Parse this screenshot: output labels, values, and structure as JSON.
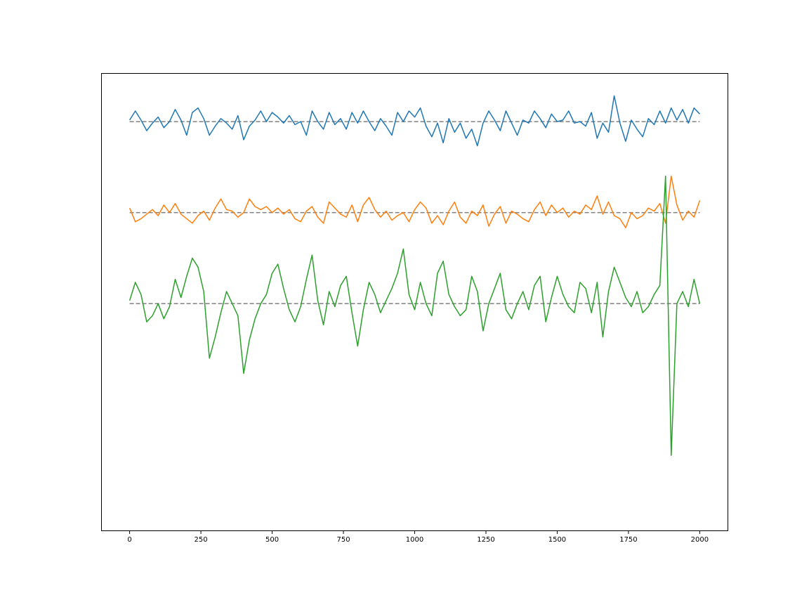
{
  "chart_data": {
    "type": "line",
    "title": "",
    "xlabel": "",
    "ylabel": "",
    "xlim": [
      -100,
      2100
    ],
    "ylim": [
      -10.5,
      4.6
    ],
    "y_ticks_shown": false,
    "grid": false,
    "legend": "none",
    "x_ticks": [
      0,
      250,
      500,
      750,
      1000,
      1250,
      1500,
      1750,
      2000
    ],
    "x_tick_labels": [
      "0",
      "250",
      "500",
      "750",
      "1000",
      "1250",
      "1500",
      "1750",
      "2000"
    ],
    "series": [
      {
        "color": "#1f77b4",
        "baseline": 3.0,
        "x": [
          0,
          20,
          40,
          60,
          80,
          100,
          120,
          140,
          160,
          180,
          200,
          220,
          240,
          260,
          280,
          300,
          320,
          340,
          360,
          380,
          400,
          420,
          440,
          460,
          480,
          500,
          520,
          540,
          560,
          580,
          600,
          620,
          640,
          660,
          680,
          700,
          720,
          740,
          760,
          780,
          800,
          820,
          840,
          860,
          880,
          900,
          920,
          940,
          960,
          980,
          1000,
          1020,
          1040,
          1060,
          1080,
          1100,
          1120,
          1140,
          1160,
          1180,
          1200,
          1220,
          1240,
          1260,
          1280,
          1300,
          1320,
          1340,
          1360,
          1380,
          1400,
          1420,
          1440,
          1460,
          1480,
          1500,
          1520,
          1540,
          1560,
          1580,
          1600,
          1620,
          1640,
          1660,
          1680,
          1700,
          1720,
          1740,
          1760,
          1780,
          1800,
          1820,
          1840,
          1860,
          1880,
          1900,
          1920,
          1940,
          1960,
          1980,
          2000
        ],
        "y": [
          3.05,
          3.35,
          3.05,
          2.7,
          2.95,
          3.15,
          2.8,
          3.0,
          3.4,
          3.05,
          2.55,
          3.3,
          3.45,
          3.1,
          2.55,
          2.85,
          3.1,
          2.95,
          2.75,
          3.2,
          2.4,
          2.85,
          3.05,
          3.35,
          3.0,
          3.3,
          3.15,
          2.95,
          3.2,
          2.9,
          3.0,
          2.55,
          3.35,
          3.0,
          2.75,
          3.3,
          2.9,
          3.1,
          2.75,
          3.3,
          2.95,
          3.35,
          3.0,
          2.7,
          3.1,
          2.85,
          2.55,
          3.3,
          3.0,
          3.35,
          3.15,
          3.45,
          2.85,
          2.5,
          2.95,
          2.3,
          3.1,
          2.65,
          2.95,
          2.45,
          2.75,
          2.2,
          2.95,
          3.35,
          3.05,
          2.7,
          3.35,
          2.95,
          2.55,
          3.05,
          2.95,
          3.35,
          3.1,
          2.8,
          3.25,
          3.0,
          3.05,
          3.35,
          2.95,
          3.0,
          2.85,
          3.3,
          2.45,
          2.95,
          2.65,
          3.85,
          2.95,
          2.35,
          3.05,
          2.75,
          2.5,
          3.1,
          2.9,
          3.35,
          2.95,
          3.45,
          3.05,
          3.4,
          2.95,
          3.45,
          3.25
        ]
      },
      {
        "color": "#ff7f0e",
        "baseline": 0.0,
        "x": [
          0,
          20,
          40,
          60,
          80,
          100,
          120,
          140,
          160,
          180,
          200,
          220,
          240,
          260,
          280,
          300,
          320,
          340,
          360,
          380,
          400,
          420,
          440,
          460,
          480,
          500,
          520,
          540,
          560,
          580,
          600,
          620,
          640,
          660,
          680,
          700,
          720,
          740,
          760,
          780,
          800,
          820,
          840,
          860,
          880,
          900,
          920,
          940,
          960,
          980,
          1000,
          1020,
          1040,
          1060,
          1080,
          1100,
          1120,
          1140,
          1160,
          1180,
          1200,
          1220,
          1240,
          1260,
          1280,
          1300,
          1320,
          1340,
          1360,
          1380,
          1400,
          1420,
          1440,
          1460,
          1480,
          1500,
          1520,
          1540,
          1560,
          1580,
          1600,
          1620,
          1640,
          1660,
          1680,
          1700,
          1720,
          1740,
          1760,
          1780,
          1800,
          1820,
          1840,
          1860,
          1880,
          1900,
          1920,
          1940,
          1960,
          1980,
          2000
        ],
        "y": [
          0.15,
          -0.3,
          -0.2,
          -0.05,
          0.1,
          -0.1,
          0.25,
          0.0,
          0.3,
          -0.05,
          -0.2,
          -0.35,
          -0.1,
          0.05,
          -0.25,
          0.15,
          0.45,
          0.1,
          0.05,
          -0.15,
          0.0,
          0.45,
          0.2,
          0.1,
          0.2,
          0.0,
          0.15,
          -0.05,
          0.1,
          -0.2,
          -0.3,
          0.05,
          0.2,
          -0.15,
          -0.35,
          0.35,
          0.15,
          -0.05,
          -0.15,
          0.25,
          -0.3,
          0.25,
          0.5,
          0.1,
          -0.15,
          0.05,
          -0.25,
          -0.1,
          0.0,
          -0.3,
          0.1,
          0.35,
          0.15,
          -0.35,
          -0.1,
          -0.4,
          0.05,
          0.35,
          -0.15,
          -0.35,
          0.05,
          -0.1,
          0.25,
          -0.45,
          -0.05,
          0.2,
          -0.35,
          0.05,
          -0.05,
          -0.2,
          -0.3,
          0.1,
          0.35,
          -0.1,
          0.25,
          0.0,
          0.15,
          -0.15,
          0.05,
          -0.05,
          0.25,
          0.1,
          0.55,
          -0.05,
          0.35,
          -0.1,
          -0.2,
          -0.5,
          0.0,
          -0.2,
          -0.1,
          0.15,
          0.05,
          0.3,
          -0.35,
          1.2,
          0.25,
          -0.25,
          0.05,
          -0.15,
          0.4
        ]
      },
      {
        "color": "#2ca02c",
        "baseline": -3.0,
        "x": [
          0,
          20,
          40,
          60,
          80,
          100,
          120,
          140,
          160,
          180,
          200,
          220,
          240,
          260,
          280,
          300,
          320,
          340,
          360,
          380,
          400,
          420,
          440,
          460,
          480,
          500,
          520,
          540,
          560,
          580,
          600,
          620,
          640,
          660,
          680,
          700,
          720,
          740,
          760,
          780,
          800,
          820,
          840,
          860,
          880,
          900,
          920,
          940,
          960,
          980,
          1000,
          1020,
          1040,
          1060,
          1080,
          1100,
          1120,
          1140,
          1160,
          1180,
          1200,
          1220,
          1240,
          1260,
          1280,
          1300,
          1320,
          1340,
          1360,
          1380,
          1400,
          1420,
          1440,
          1460,
          1480,
          1500,
          1520,
          1540,
          1560,
          1580,
          1600,
          1620,
          1640,
          1660,
          1680,
          1700,
          1720,
          1740,
          1760,
          1780,
          1800,
          1820,
          1840,
          1860,
          1880,
          1900,
          1920,
          1940,
          1960,
          1980,
          2000
        ],
        "y": [
          -2.9,
          -2.3,
          -2.7,
          -3.6,
          -3.4,
          -3.0,
          -3.5,
          -3.1,
          -2.2,
          -2.8,
          -2.1,
          -1.5,
          -1.8,
          -2.6,
          -4.8,
          -4.1,
          -3.3,
          -2.6,
          -3.0,
          -3.4,
          -5.3,
          -4.2,
          -3.5,
          -3.0,
          -2.7,
          -2.0,
          -1.7,
          -2.5,
          -3.2,
          -3.6,
          -3.1,
          -2.2,
          -1.4,
          -2.9,
          -3.7,
          -2.6,
          -3.1,
          -2.4,
          -2.1,
          -3.3,
          -4.4,
          -3.2,
          -2.3,
          -2.7,
          -3.3,
          -2.9,
          -2.5,
          -2.0,
          -1.2,
          -2.7,
          -3.2,
          -2.3,
          -3.0,
          -3.4,
          -2.0,
          -1.6,
          -2.7,
          -3.1,
          -3.4,
          -3.2,
          -2.1,
          -2.6,
          -3.9,
          -3.0,
          -2.5,
          -2.0,
          -3.2,
          -3.5,
          -3.0,
          -2.6,
          -3.2,
          -2.4,
          -2.1,
          -3.6,
          -2.8,
          -2.1,
          -2.7,
          -3.1,
          -3.3,
          -2.3,
          -2.5,
          -3.3,
          -2.3,
          -4.1,
          -2.6,
          -1.8,
          -2.3,
          -2.8,
          -3.1,
          -2.6,
          -3.3,
          -3.1,
          -2.7,
          -2.4,
          1.2,
          -8.0,
          -3.0,
          -2.6,
          -3.1,
          -2.2,
          -3.0
        ]
      }
    ]
  }
}
